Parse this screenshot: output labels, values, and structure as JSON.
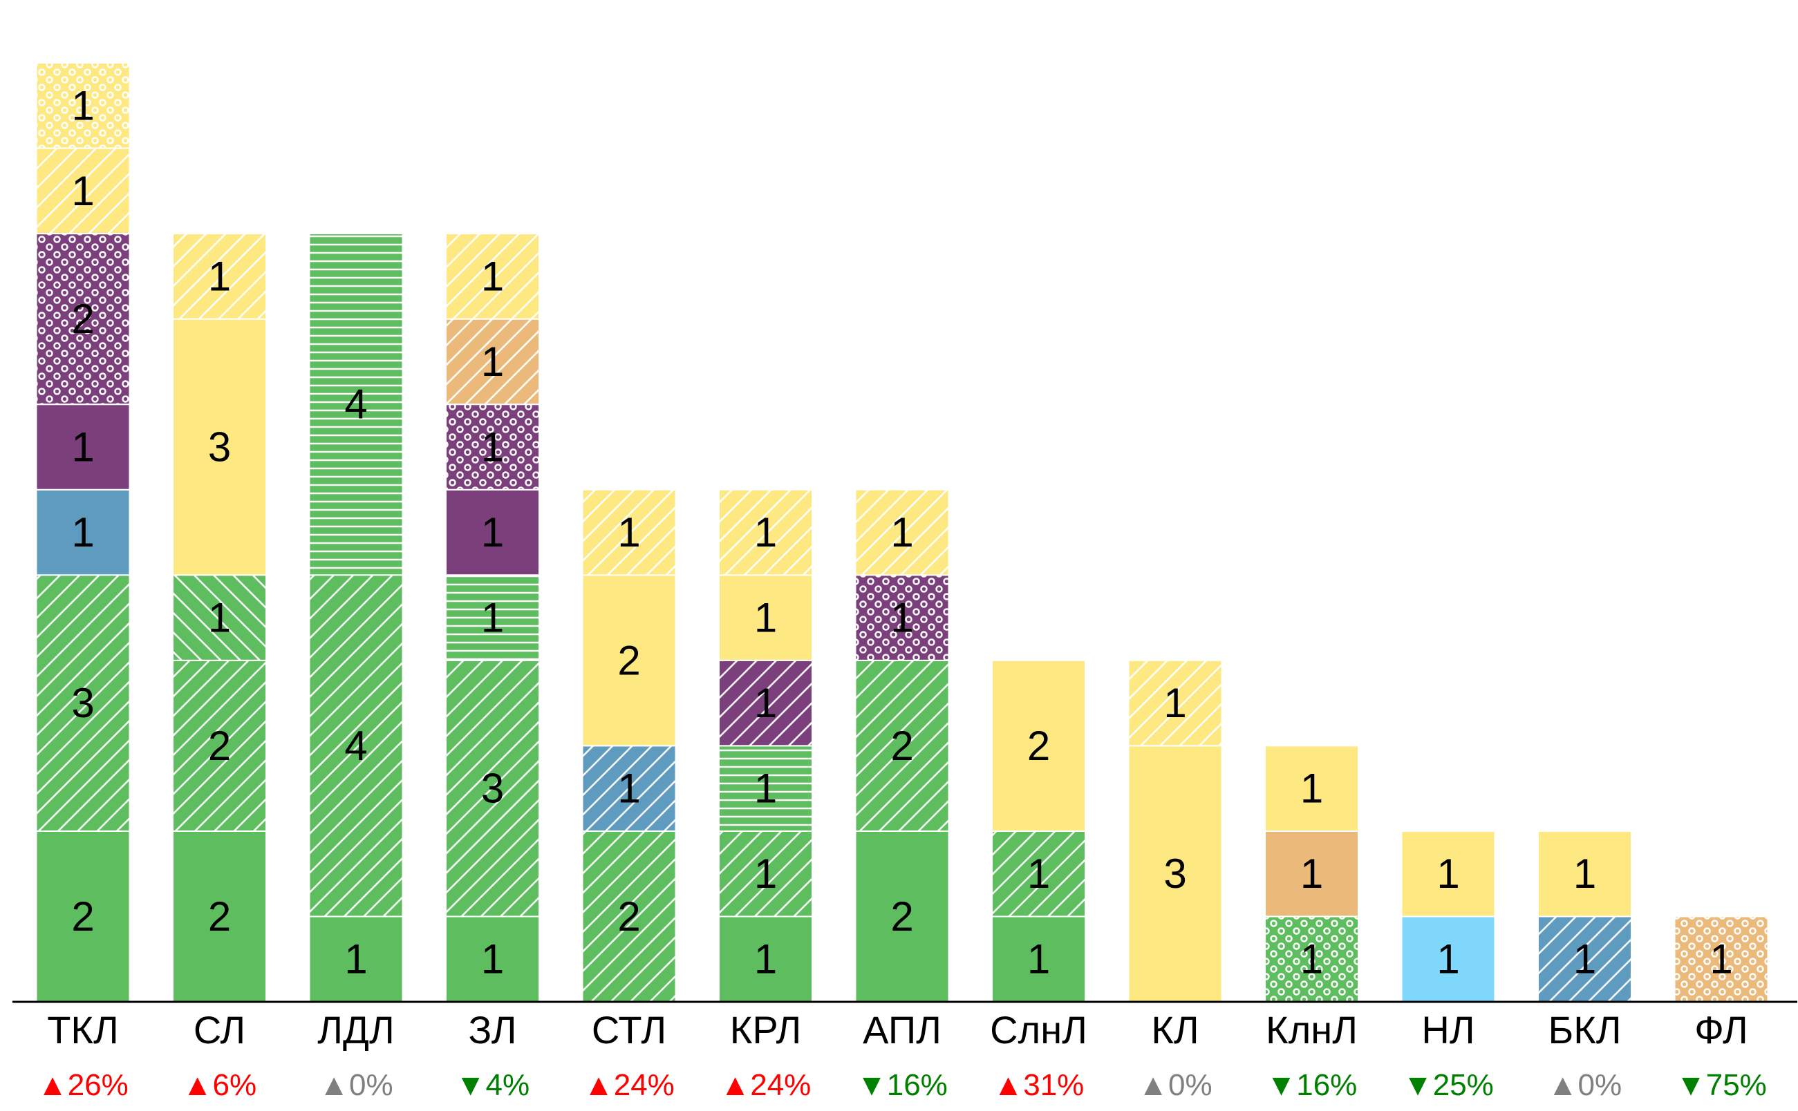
{
  "chart_data": {
    "type": "bar",
    "stacked": true,
    "title": "",
    "xlabel": "",
    "ylabel": "",
    "ylim": [
      0,
      11
    ],
    "grid": false,
    "legend": "none",
    "colors": {
      "green": "#5ebd5e",
      "yellow": "#fde882",
      "purple": "#7b3f7c",
      "blue": "#5f9abf",
      "orange": "#ebb97a",
      "lightblue": "#7fd8fc",
      "up": "#ff0000",
      "down": "#008000",
      "flat": "#808080",
      "axis": "#000000"
    },
    "categories": [
      {
        "label": "ТКЛ",
        "change": "26%",
        "direction": "up",
        "segments": [
          {
            "value": 2,
            "color": "green",
            "pattern": "solid"
          },
          {
            "value": 3,
            "color": "green",
            "pattern": "diagonal"
          },
          {
            "value": 1,
            "color": "blue",
            "pattern": "solid"
          },
          {
            "value": 1,
            "color": "purple",
            "pattern": "solid"
          },
          {
            "value": 2,
            "color": "purple",
            "pattern": "dots"
          },
          {
            "value": 1,
            "color": "yellow",
            "pattern": "diagonal"
          },
          {
            "value": 1,
            "color": "yellow",
            "pattern": "dots"
          }
        ]
      },
      {
        "label": "СЛ",
        "change": "6%",
        "direction": "up",
        "segments": [
          {
            "value": 2,
            "color": "green",
            "pattern": "solid"
          },
          {
            "value": 2,
            "color": "green",
            "pattern": "diagonal"
          },
          {
            "value": 1,
            "color": "green",
            "pattern": "backdiagonal"
          },
          {
            "value": 3,
            "color": "yellow",
            "pattern": "solid"
          },
          {
            "value": 1,
            "color": "yellow",
            "pattern": "diagonal"
          }
        ]
      },
      {
        "label": "ЛДЛ",
        "change": "0%",
        "direction": "flat",
        "segments": [
          {
            "value": 1,
            "color": "green",
            "pattern": "solid"
          },
          {
            "value": 4,
            "color": "green",
            "pattern": "diagonal"
          },
          {
            "value": 4,
            "color": "green",
            "pattern": "horizontal"
          }
        ]
      },
      {
        "label": "ЗЛ",
        "change": "4%",
        "direction": "down",
        "segments": [
          {
            "value": 1,
            "color": "green",
            "pattern": "solid"
          },
          {
            "value": 3,
            "color": "green",
            "pattern": "diagonal"
          },
          {
            "value": 1,
            "color": "green",
            "pattern": "horizontal"
          },
          {
            "value": 1,
            "color": "purple",
            "pattern": "solid"
          },
          {
            "value": 1,
            "color": "purple",
            "pattern": "dots"
          },
          {
            "value": 1,
            "color": "orange",
            "pattern": "diagonal"
          },
          {
            "value": 1,
            "color": "yellow",
            "pattern": "diagonal"
          }
        ]
      },
      {
        "label": "СТЛ",
        "change": "24%",
        "direction": "up",
        "segments": [
          {
            "value": 2,
            "color": "green",
            "pattern": "diagonal"
          },
          {
            "value": 1,
            "color": "blue",
            "pattern": "diagonal"
          },
          {
            "value": 2,
            "color": "yellow",
            "pattern": "solid"
          },
          {
            "value": 1,
            "color": "yellow",
            "pattern": "diagonal"
          }
        ]
      },
      {
        "label": "КРЛ",
        "change": "24%",
        "direction": "up",
        "segments": [
          {
            "value": 1,
            "color": "green",
            "pattern": "solid"
          },
          {
            "value": 1,
            "color": "green",
            "pattern": "diagonal"
          },
          {
            "value": 1,
            "color": "green",
            "pattern": "horizontal"
          },
          {
            "value": 1,
            "color": "purple",
            "pattern": "diagonal"
          },
          {
            "value": 1,
            "color": "yellow",
            "pattern": "solid"
          },
          {
            "value": 1,
            "color": "yellow",
            "pattern": "diagonal"
          }
        ]
      },
      {
        "label": "АПЛ",
        "change": "16%",
        "direction": "down",
        "segments": [
          {
            "value": 2,
            "color": "green",
            "pattern": "solid"
          },
          {
            "value": 2,
            "color": "green",
            "pattern": "diagonal"
          },
          {
            "value": 1,
            "color": "purple",
            "pattern": "dots"
          },
          {
            "value": 1,
            "color": "yellow",
            "pattern": "diagonal"
          }
        ]
      },
      {
        "label": "СлнЛ",
        "change": "31%",
        "direction": "up",
        "segments": [
          {
            "value": 1,
            "color": "green",
            "pattern": "solid"
          },
          {
            "value": 1,
            "color": "green",
            "pattern": "diagonal"
          },
          {
            "value": 2,
            "color": "yellow",
            "pattern": "solid"
          }
        ]
      },
      {
        "label": "КЛ",
        "change": "0%",
        "direction": "flat",
        "segments": [
          {
            "value": 3,
            "color": "yellow",
            "pattern": "solid"
          },
          {
            "value": 1,
            "color": "yellow",
            "pattern": "diagonal"
          }
        ]
      },
      {
        "label": "КлнЛ",
        "change": "16%",
        "direction": "down",
        "segments": [
          {
            "value": 1,
            "color": "green",
            "pattern": "dots"
          },
          {
            "value": 1,
            "color": "orange",
            "pattern": "solid"
          },
          {
            "value": 1,
            "color": "yellow",
            "pattern": "solid"
          }
        ]
      },
      {
        "label": "НЛ",
        "change": "25%",
        "direction": "down",
        "segments": [
          {
            "value": 1,
            "color": "lightblue",
            "pattern": "solid"
          },
          {
            "value": 1,
            "color": "yellow",
            "pattern": "solid"
          }
        ]
      },
      {
        "label": "БКЛ",
        "change": "0%",
        "direction": "flat",
        "segments": [
          {
            "value": 1,
            "color": "blue",
            "pattern": "diagonal"
          },
          {
            "value": 1,
            "color": "yellow",
            "pattern": "solid"
          }
        ]
      },
      {
        "label": "ФЛ",
        "change": "75%",
        "direction": "down",
        "segments": [
          {
            "value": 1,
            "color": "orange",
            "pattern": "dots"
          }
        ]
      }
    ],
    "arrows": {
      "up": "▲",
      "down": "▼",
      "flat": "▲"
    }
  }
}
